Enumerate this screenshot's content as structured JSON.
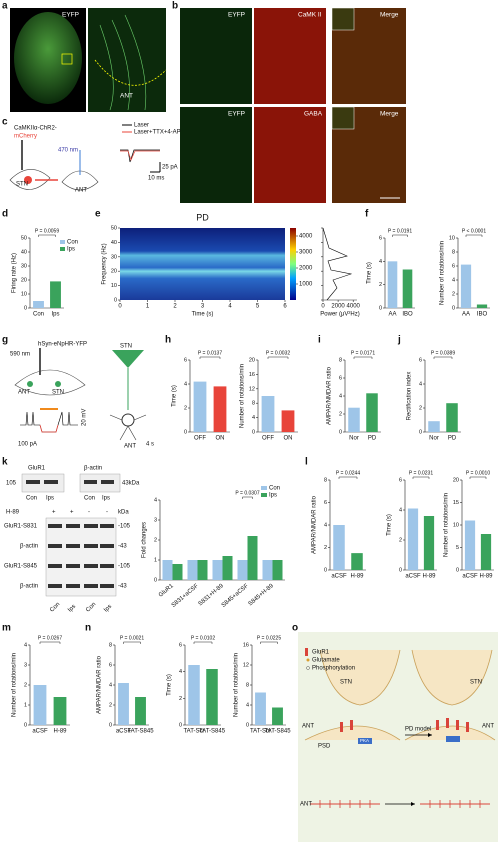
{
  "texts": {
    "a": "a",
    "b": "b",
    "c": "c",
    "d": "d",
    "e": "e",
    "f": "f",
    "g": "g",
    "h": "h",
    "i": "i",
    "j": "j",
    "k": "k",
    "l": "l",
    "m": "m",
    "n": "n",
    "o": "o",
    "a_eyfp": "EYFP",
    "a_ant": "ANT",
    "b_eyfp1": "EYFP",
    "b_camk": "CaMK II",
    "b_merge1": "Merge",
    "b_eyfp2": "EYFP",
    "b_gaba": "GABA",
    "b_merge2": "Merge",
    "c_virus1": "CaMKIIα-ChR2-",
    "c_virus2": "mCherry",
    "c_nm": "470 nm",
    "c_stn": "STN",
    "c_ant": "ANT",
    "c_laser": "Laser",
    "c_laser2": "Laser+TTX+4-AP",
    "c_pa": "25 pA",
    "c_ms": "10 ms",
    "g_virus": "hSyn-eNpHR-YFP",
    "g_nm": "590 nm",
    "g_ant": "ANT",
    "g_stn": "STN",
    "g_stn2": "STN",
    "g_ant2": "ANT",
    "g_pa": "100 pA",
    "g_s": "4 s",
    "g_mv": "20 mV",
    "k_glur1": "GluR1",
    "k_actin": "β-actin",
    "k_105": "105",
    "k_43kda": "43kDa",
    "k_con1": "Con",
    "k_ips1": "Ips",
    "k_con2": "Con",
    "k_ips2": "Ips",
    "k_h89": "H-89",
    "k_p1": "+",
    "k_p2": "+",
    "k_m1": "-",
    "k_m2": "-",
    "k_kda": "kDa",
    "k_s831": "GluR1-S831",
    "k_actin2": "β-actin",
    "k_s845": "GluR1-S845",
    "k_actin3": "β-actin",
    "k_105a": "-105",
    "k_43a": "-43",
    "k_105b": "-105",
    "k_43b": "-43",
    "k_con3": "Con",
    "k_ips3": "Ips",
    "k_con4": "Con",
    "k_ips4": "Ips",
    "o_glur1": "GluR1",
    "o_glu": "Glutamate",
    "o_phos": "Phosphorylation",
    "o_stn1": "STN",
    "o_stn2": "STN",
    "o_ant1": "ANT",
    "o_ant2": "ANT",
    "o_psd": "PSD",
    "o_pka": "PKA",
    "o_model": "PD model",
    "o_ant3": "ANT"
  },
  "chart_data": [
    {
      "type": "bar",
      "ylabel": "Firing rate (Hz)",
      "categories": [
        "Con",
        "Ips"
      ],
      "values": [
        5,
        19
      ],
      "colors": [
        "#9ec5e8",
        "#3aa35c"
      ],
      "ylim": [
        0,
        50
      ],
      "yticks": [
        0,
        10,
        20,
        30,
        40,
        50
      ],
      "annotation": "P = 0.0059",
      "legend": true
    },
    {
      "type": "spectrogram",
      "title": "PD",
      "xlabel": "Time (s)",
      "ylabel": "Frequency (Hz)",
      "xlim": [
        0,
        6
      ],
      "xticks": [
        0,
        1,
        2,
        3,
        4,
        5,
        6
      ],
      "ylim": [
        0,
        50
      ],
      "yticks": [
        0,
        10,
        20,
        30,
        40,
        50
      ],
      "colorbar_lim": [
        0,
        4500
      ],
      "colorbar_ticks": [
        1000,
        2000,
        3000,
        4000
      ],
      "power_xlabel": "Power (μV²Hz)",
      "power_xlim": [
        0,
        4500
      ],
      "power_xticks": [
        0,
        2000,
        4000
      ]
    },
    {
      "type": "bar",
      "ylabel": "Time (s)",
      "categories": [
        "AA",
        "IBO"
      ],
      "values": [
        4.0,
        3.3
      ],
      "colors": [
        "#9ec5e8",
        "#3aa35c"
      ],
      "ylim": [
        0,
        6
      ],
      "yticks": [
        0,
        2,
        4,
        6
      ],
      "annotation": "P = 0.0191"
    },
    {
      "type": "bar",
      "ylabel": "Number of rotations/min",
      "categories": [
        "AA",
        "IBO"
      ],
      "values": [
        6.2,
        0.5
      ],
      "colors": [
        "#9ec5e8",
        "#3aa35c"
      ],
      "ylim": [
        0,
        10
      ],
      "yticks": [
        0,
        2,
        4,
        6,
        8,
        10
      ],
      "annotation": "P < 0.0001"
    },
    {
      "type": "bar",
      "ylabel": "Time (s)",
      "categories": [
        "OFF",
        "ON"
      ],
      "values": [
        4.2,
        3.8
      ],
      "colors": [
        "#9ec5e8",
        "#e8443a"
      ],
      "ylim": [
        0,
        6
      ],
      "yticks": [
        0,
        2,
        4,
        6
      ],
      "annotation": "P = 0.0137"
    },
    {
      "type": "bar",
      "ylabel": "Number of rotations/min",
      "categories": [
        "OFF",
        "ON"
      ],
      "values": [
        10,
        6
      ],
      "colors": [
        "#9ec5e8",
        "#e8443a"
      ],
      "ylim": [
        0,
        20
      ],
      "yticks": [
        0,
        4,
        8,
        12,
        16,
        20
      ],
      "annotation": "P = 0.0032"
    },
    {
      "type": "bar",
      "ylabel": "AMPAR/NMDAR ratio",
      "categories": [
        "Nor",
        "PD"
      ],
      "values": [
        2.7,
        4.3
      ],
      "colors": [
        "#9ec5e8",
        "#3aa35c"
      ],
      "ylim": [
        0,
        8
      ],
      "yticks": [
        0,
        2,
        4,
        6,
        8
      ],
      "annotation": "P = 0.0171"
    },
    {
      "type": "bar",
      "ylabel": "Rectification index",
      "categories": [
        "Nor",
        "PD"
      ],
      "values": [
        0.9,
        2.4
      ],
      "colors": [
        "#9ec5e8",
        "#3aa35c"
      ],
      "ylim": [
        0,
        6
      ],
      "yticks": [
        0,
        2,
        4,
        6
      ],
      "annotation": "P = 0.0389"
    },
    {
      "type": "grouped_bar",
      "ylabel": "Fold changes",
      "categories": [
        "GluR1",
        "S831+aCSF",
        "S831+H-89",
        "S845+aCSF",
        "S845+H-89"
      ],
      "series": [
        {
          "name": "Con",
          "color": "#9ec5e8",
          "values": [
            1,
            1,
            1,
            1,
            1
          ]
        },
        {
          "name": "Ips",
          "color": "#3aa35c",
          "values": [
            0.8,
            1.0,
            1.2,
            2.2,
            1.0
          ]
        }
      ],
      "ylim": [
        0,
        4
      ],
      "yticks": [
        0,
        1,
        2,
        3,
        4
      ],
      "annotation": "P = 0.0307",
      "legend": true
    },
    {
      "type": "bar",
      "ylabel": "AMPAR/NMDAR ratio",
      "categories": [
        "aCSF",
        "H-89"
      ],
      "values": [
        4.0,
        1.5
      ],
      "colors": [
        "#9ec5e8",
        "#3aa35c"
      ],
      "ylim": [
        0,
        8
      ],
      "yticks": [
        0,
        2,
        4,
        6,
        8
      ],
      "annotation": "P = 0.0244"
    },
    {
      "type": "bar",
      "ylabel": "Time (s)",
      "categories": [
        "aCSF",
        "H-89"
      ],
      "values": [
        4.1,
        3.6
      ],
      "colors": [
        "#9ec5e8",
        "#3aa35c"
      ],
      "ylim": [
        0,
        6
      ],
      "yticks": [
        0,
        2,
        4,
        6
      ],
      "annotation": "P = 0.0231"
    },
    {
      "type": "bar",
      "ylabel": "Number of rotations/min",
      "categories": [
        "aCSF",
        "H-89"
      ],
      "values": [
        11,
        8
      ],
      "colors": [
        "#9ec5e8",
        "#3aa35c"
      ],
      "ylim": [
        0,
        20
      ],
      "yticks": [
        0,
        5,
        10,
        15,
        20
      ],
      "annotation": "P = 0.0010"
    },
    {
      "type": "bar",
      "ylabel": "Number of rotations/min",
      "categories": [
        "aCSF",
        "H-89"
      ],
      "values": [
        2.0,
        1.4
      ],
      "colors": [
        "#9ec5e8",
        "#3aa35c"
      ],
      "ylim": [
        0,
        4
      ],
      "yticks": [
        0,
        1,
        2,
        3,
        4
      ],
      "annotation": "P = 0.0267"
    },
    {
      "type": "bar",
      "ylabel": "AMPAR/NMDAR ratio",
      "categories": [
        "aCSF",
        "TAT-S845"
      ],
      "values": [
        4.2,
        2.8
      ],
      "colors": [
        "#9ec5e8",
        "#3aa35c"
      ],
      "ylim": [
        0,
        8
      ],
      "yticks": [
        0,
        2,
        4,
        6,
        8
      ],
      "annotation": "P = 0.0021"
    },
    {
      "type": "bar",
      "ylabel": "Time (s)",
      "categories": [
        "TAT-Scr",
        "TAT-S845"
      ],
      "values": [
        4.5,
        4.2
      ],
      "colors": [
        "#9ec5e8",
        "#3aa35c"
      ],
      "ylim": [
        0,
        6
      ],
      "yticks": [
        0,
        2,
        4,
        6
      ],
      "annotation": "P = 0.0102"
    },
    {
      "type": "bar",
      "ylabel": "Number of rotations/min",
      "categories": [
        "TAT-Scr",
        "TAT-S845"
      ],
      "values": [
        6.5,
        3.5
      ],
      "colors": [
        "#9ec5e8",
        "#3aa35c"
      ],
      "ylim": [
        0,
        16
      ],
      "yticks": [
        0,
        4,
        8,
        12,
        16
      ],
      "annotation": "P = 0.0225"
    }
  ]
}
